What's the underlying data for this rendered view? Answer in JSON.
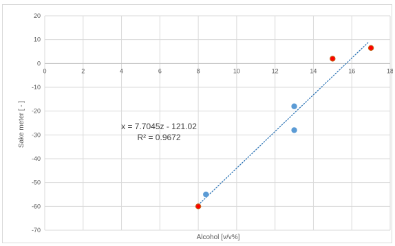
{
  "chart_data": {
    "type": "scatter",
    "xlabel": "Alcohol [v/v%]",
    "ylabel": "Sake meter [ - ]",
    "xlim": [
      0,
      18
    ],
    "ylim": [
      -70,
      20
    ],
    "x_ticks": [
      0,
      2,
      4,
      6,
      8,
      10,
      12,
      14,
      16,
      18
    ],
    "y_ticks": [
      20,
      10,
      0,
      -10,
      -20,
      -30,
      -40,
      -50,
      -60,
      -70
    ],
    "grid": true,
    "series": [
      {
        "color": "#5b9bd5",
        "points": [
          {
            "x": 8.4,
            "y": -55
          },
          {
            "x": 13,
            "y": -18
          },
          {
            "x": 13,
            "y": -28
          }
        ]
      },
      {
        "color": "#ff0000",
        "edge_color": "#c55a11",
        "points": [
          {
            "x": 8,
            "y": -60
          },
          {
            "x": 15,
            "y": 2
          },
          {
            "x": 17,
            "y": 6.5
          }
        ]
      }
    ],
    "trendline": {
      "type": "linear",
      "style": "dotted",
      "color": "#2e75b6",
      "slope": 7.7045,
      "intercept": -121.02,
      "x_range": [
        8.1,
        16.9
      ],
      "equation_text": "x = 7.7045z - 121.02",
      "r2_text": "R² = 0.9672"
    }
  }
}
